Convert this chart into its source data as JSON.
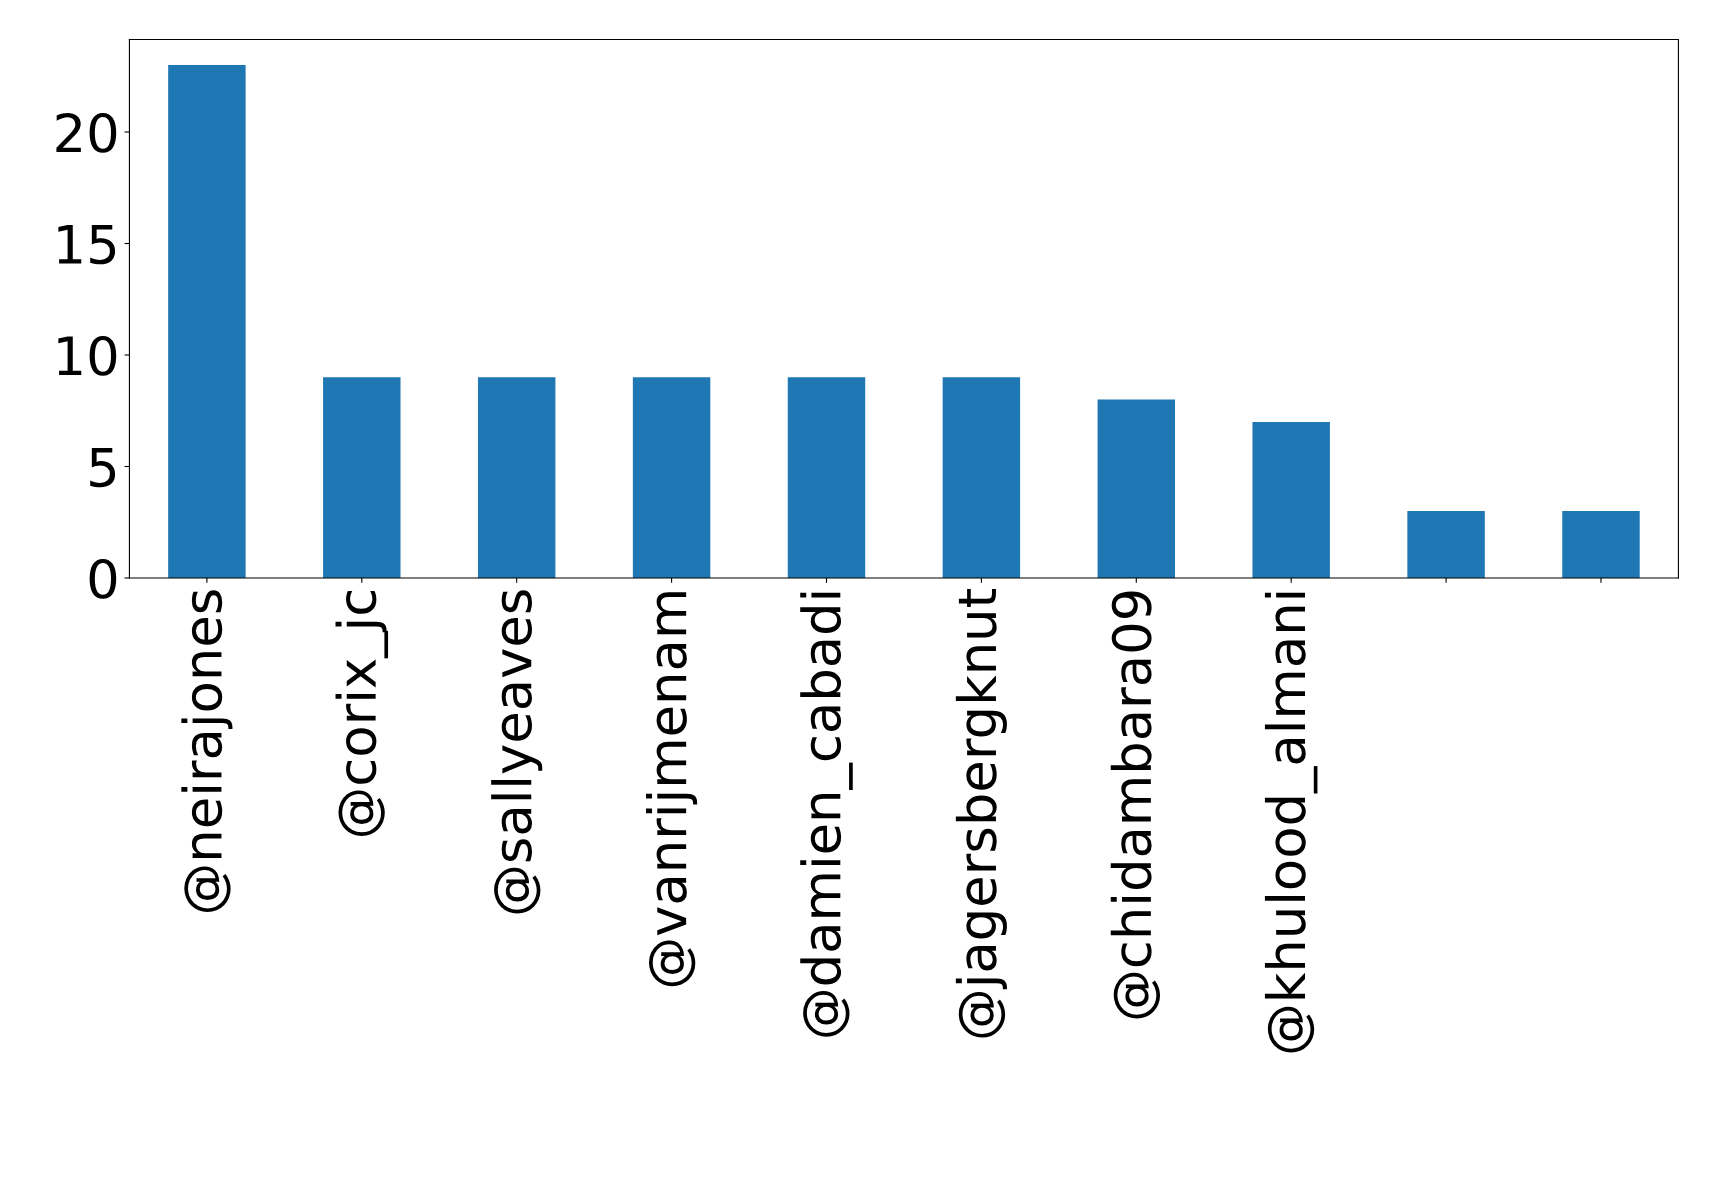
{
  "chart_data": {
    "type": "bar",
    "categories": [
      "@neirajones",
      "@corix_jc",
      "@sallyeaves",
      "@vanrijmenam",
      "@damien_cabadi",
      "@jagersbergknut",
      "@chidambara09",
      "@khulood_almani",
      null,
      null
    ],
    "values": [
      23,
      9,
      9,
      9,
      9,
      9,
      8,
      7,
      3,
      3
    ],
    "color": "#1f77b4",
    "ylim": [
      0,
      24.15
    ],
    "yticks": [
      0,
      5,
      10,
      15,
      20
    ],
    "grid": false,
    "legend": false
  }
}
